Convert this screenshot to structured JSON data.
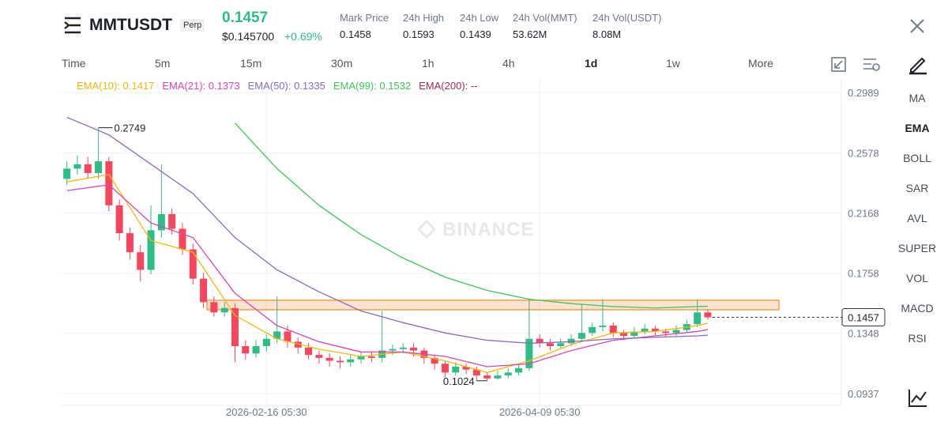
{
  "header": {
    "symbol": "MMTUSDT",
    "badge": "Perp",
    "last_price": "0.1457",
    "usd_price": "$0.145700",
    "change": "+0.69%",
    "stats": [
      {
        "label": "Mark Price",
        "value": "0.1458"
      },
      {
        "label": "24h High",
        "value": "0.1593"
      },
      {
        "label": "24h Low",
        "value": "0.1439"
      },
      {
        "label": "24h Vol(MMT)",
        "value": "53.62M"
      },
      {
        "label": "24h Vol(USDT)",
        "value": "8.08M"
      }
    ]
  },
  "intervals": [
    "Time",
    "5m",
    "15m",
    "30m",
    "1h",
    "4h",
    "1d",
    "1w",
    "More"
  ],
  "active_interval": "1d",
  "indicators": [
    "MA",
    "EMA",
    "BOLL",
    "SAR",
    "AVL",
    "SUPER",
    "VOL",
    "MACD",
    "RSI"
  ],
  "active_indicator": "EMA",
  "chart_data": {
    "type": "candlestick",
    "watermark": "BINANCE",
    "up_color": "#2ebd85",
    "down_color": "#f6465d",
    "ylim": [
      0.0856,
      0.3081
    ],
    "yticks": [
      0.0937,
      0.1348,
      0.1758,
      0.2168,
      0.2578,
      0.2989
    ],
    "xticks": [
      {
        "value": 19,
        "label": "2026-02-16 05:30"
      },
      {
        "value": 45,
        "label": "2026-04-09 05:30"
      }
    ],
    "open": [
      0.24,
      0.247,
      0.25,
      0.244,
      0.252,
      0.222,
      0.203,
      0.19,
      0.178,
      0.205,
      0.216,
      0.206,
      0.192,
      0.172,
      0.156,
      0.149,
      0.152,
      0.126,
      0.121,
      0.126,
      0.131,
      0.136,
      0.129,
      0.125,
      0.12,
      0.118,
      0.116,
      0.115,
      0.117,
      0.119,
      0.118,
      0.123,
      0.124,
      0.125,
      0.123,
      0.118,
      0.114,
      0.108,
      0.112,
      0.11,
      0.106,
      0.104,
      0.106,
      0.108,
      0.111,
      0.131,
      0.128,
      0.126,
      0.128,
      0.131,
      0.135,
      0.139,
      0.14,
      0.135,
      0.133,
      0.136,
      0.138,
      0.136,
      0.135,
      0.137,
      0.141,
      0.149
    ],
    "high": [
      0.252,
      0.256,
      0.255,
      0.2749,
      0.255,
      0.226,
      0.207,
      0.195,
      0.222,
      0.25,
      0.22,
      0.21,
      0.196,
      0.176,
      0.16,
      0.156,
      0.155,
      0.13,
      0.13,
      0.134,
      0.16,
      0.14,
      0.132,
      0.128,
      0.123,
      0.121,
      0.119,
      0.12,
      0.122,
      0.122,
      0.15,
      0.127,
      0.128,
      0.128,
      0.125,
      0.12,
      0.116,
      0.115,
      0.114,
      0.112,
      0.108,
      0.109,
      0.111,
      0.114,
      0.158,
      0.134,
      0.131,
      0.131,
      0.134,
      0.155,
      0.142,
      0.158,
      0.142,
      0.137,
      0.139,
      0.141,
      0.14,
      0.138,
      0.14,
      0.144,
      0.158,
      0.151
    ],
    "low": [
      0.236,
      0.243,
      0.24,
      0.24,
      0.218,
      0.198,
      0.185,
      0.17,
      0.175,
      0.2,
      0.202,
      0.188,
      0.168,
      0.152,
      0.146,
      0.146,
      0.115,
      0.117,
      0.118,
      0.122,
      0.128,
      0.125,
      0.121,
      0.117,
      0.114,
      0.112,
      0.111,
      0.112,
      0.114,
      0.115,
      0.115,
      0.12,
      0.121,
      0.119,
      0.114,
      0.11,
      0.105,
      0.106,
      0.107,
      0.103,
      0.1024,
      0.103,
      0.104,
      0.106,
      0.109,
      0.125,
      0.123,
      0.124,
      0.126,
      0.129,
      0.133,
      0.136,
      0.132,
      0.13,
      0.131,
      0.134,
      0.133,
      0.132,
      0.133,
      0.135,
      0.139,
      0.144
    ],
    "close": [
      0.247,
      0.25,
      0.244,
      0.252,
      0.222,
      0.203,
      0.19,
      0.178,
      0.205,
      0.216,
      0.206,
      0.192,
      0.172,
      0.156,
      0.149,
      0.152,
      0.126,
      0.121,
      0.126,
      0.131,
      0.136,
      0.129,
      0.125,
      0.12,
      0.118,
      0.116,
      0.115,
      0.117,
      0.119,
      0.118,
      0.123,
      0.124,
      0.125,
      0.123,
      0.118,
      0.114,
      0.108,
      0.112,
      0.11,
      0.106,
      0.104,
      0.106,
      0.108,
      0.111,
      0.131,
      0.128,
      0.126,
      0.128,
      0.131,
      0.135,
      0.139,
      0.14,
      0.135,
      0.133,
      0.136,
      0.138,
      0.136,
      0.135,
      0.137,
      0.141,
      0.149,
      0.1457
    ],
    "highlight_zone": [
      0.1508,
      0.1573
    ],
    "series": [
      {
        "name": "EMA(10): 0.1417",
        "color": "#f0b90b",
        "x": [
          0,
          4,
          8,
          12,
          16,
          20,
          24,
          28,
          32,
          36,
          40,
          44,
          48,
          52,
          56,
          60,
          61
        ],
        "values": [
          0.238,
          0.243,
          0.198,
          0.19,
          0.147,
          0.131,
          0.124,
          0.119,
          0.122,
          0.116,
          0.108,
          0.116,
          0.127,
          0.135,
          0.136,
          0.14,
          0.1417
        ]
      },
      {
        "name": "EMA(21): 0.1373",
        "color": "#d946b5",
        "x": [
          0,
          4,
          8,
          12,
          16,
          20,
          24,
          28,
          32,
          36,
          40,
          44,
          48,
          52,
          56,
          60,
          61
        ],
        "values": [
          0.232,
          0.236,
          0.21,
          0.2,
          0.162,
          0.14,
          0.129,
          0.122,
          0.122,
          0.119,
          0.112,
          0.114,
          0.123,
          0.13,
          0.133,
          0.136,
          0.1373
        ]
      },
      {
        "name": "EMA(50): 0.1335",
        "color": "#8a6bbd",
        "x": [
          0,
          4,
          8,
          12,
          16,
          20,
          24,
          28,
          32,
          36,
          40,
          44,
          48,
          52,
          56,
          60,
          61
        ],
        "values": [
          0.282,
          0.27,
          0.25,
          0.23,
          0.2,
          0.178,
          0.163,
          0.15,
          0.142,
          0.135,
          0.13,
          0.128,
          0.129,
          0.131,
          0.132,
          0.133,
          0.1335
        ]
      },
      {
        "name": "EMA(99): 0.1532",
        "color": "#3ec75a",
        "x": [
          16,
          20,
          24,
          28,
          32,
          36,
          40,
          44,
          48,
          52,
          56,
          60,
          61
        ],
        "values": [
          0.278,
          0.247,
          0.222,
          0.202,
          0.186,
          0.173,
          0.164,
          0.158,
          0.155,
          0.153,
          0.152,
          0.153,
          0.1532
        ]
      },
      {
        "name": "EMA(200): --",
        "color": "#9c2a5a"
      }
    ]
  }
}
